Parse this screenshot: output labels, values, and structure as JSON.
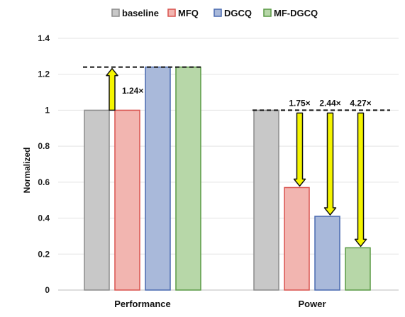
{
  "chart_data": {
    "type": "bar",
    "title": "",
    "xlabel": "",
    "ylabel": "Normalized",
    "ylim": [
      0,
      1.4
    ],
    "yticks": [
      "0",
      "0.2",
      "0.4",
      "0.6",
      "0.8",
      "1",
      "1.2",
      "1.4"
    ],
    "grid": true,
    "legend_position": "top",
    "categories": [
      "Performance",
      "Power"
    ],
    "series": [
      {
        "name": "baseline",
        "values": [
          1.0,
          1.0
        ],
        "color": "#c8c8c8",
        "border": "#8c8c8c"
      },
      {
        "name": "MFQ",
        "values": [
          1.0,
          0.57
        ],
        "color": "#f2b5b0",
        "border": "#d9534f"
      },
      {
        "name": "DGCQ",
        "values": [
          1.24,
          0.41
        ],
        "color": "#a9b9da",
        "border": "#4a6ab0"
      },
      {
        "name": "MF-DGCQ",
        "values": [
          1.24,
          0.235
        ],
        "color": "#b7d7a8",
        "border": "#5a9a45"
      }
    ],
    "annotations": [
      {
        "category": "Performance",
        "from": 1.0,
        "to": 1.24,
        "label": "1.24×",
        "series_index": 0,
        "direction": "up"
      },
      {
        "category": "Power",
        "from": 1.0,
        "to": 0.57,
        "label": "1.75×",
        "series_index": 1,
        "direction": "down"
      },
      {
        "category": "Power",
        "from": 1.0,
        "to": 0.41,
        "label": "2.44×",
        "series_index": 2,
        "direction": "down"
      },
      {
        "category": "Power",
        "from": 1.0,
        "to": 0.235,
        "label": "4.27×",
        "series_index": 3,
        "direction": "down"
      }
    ],
    "reference_lines": [
      {
        "category": "Performance",
        "value": 1.24
      },
      {
        "category": "Power",
        "value": 1.0
      }
    ]
  }
}
